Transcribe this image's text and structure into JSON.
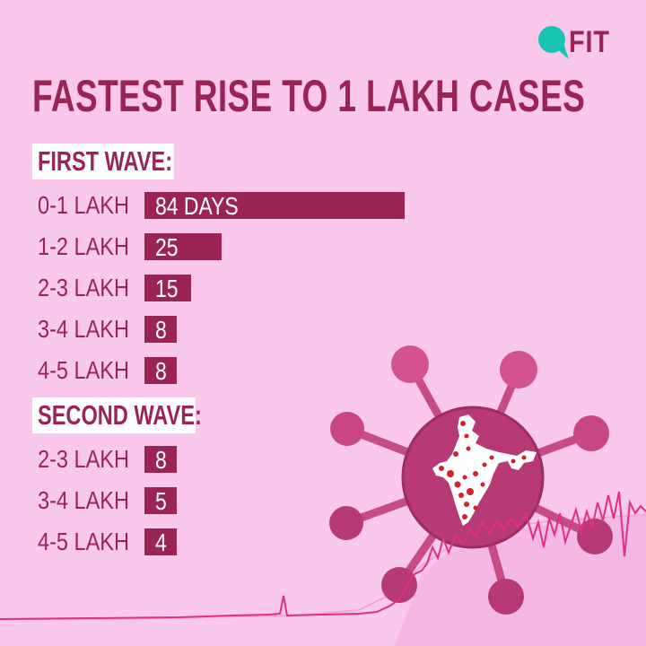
{
  "brand": {
    "logo_text": "FIT",
    "teal": "#17c4b2",
    "text_color": "#9b2454"
  },
  "colors": {
    "background": "#f9c8eb",
    "accent": "#9b2454",
    "virus": "#b83a74",
    "line": "#e0307f",
    "dots": "#d4202a"
  },
  "chart_data": {
    "type": "bar",
    "title": "FASTEST RISE TO 1 LAKH CASES",
    "unit_suffix_first": "DAYS",
    "xlim": [
      0,
      84
    ],
    "groups": [
      {
        "name": "FIRST WAVE:",
        "categories": [
          "0-1 LAKH",
          "1-2 LAKH",
          "2-3 LAKH",
          "3-4 LAKH",
          "4-5 LAKH"
        ],
        "values": [
          84,
          25,
          15,
          8,
          8
        ],
        "labels": [
          "84 DAYS",
          "25",
          "15",
          "8",
          "8"
        ]
      },
      {
        "name": "SECOND WAVE:",
        "categories": [
          "2-3 LAKH",
          "3-4 LAKH",
          "4-5 LAKH"
        ],
        "values": [
          8,
          5,
          4
        ],
        "labels": [
          "8",
          "5",
          "4"
        ]
      }
    ]
  },
  "icons": [
    "virus-icon",
    "india-map-icon",
    "fit-logo-icon",
    "case-trend-line"
  ]
}
